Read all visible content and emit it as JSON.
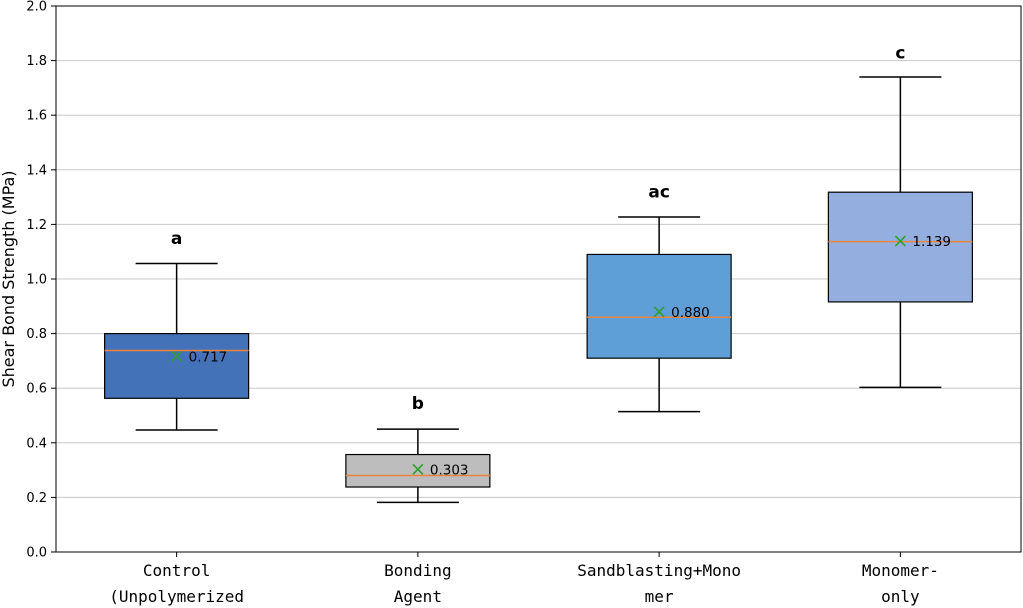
{
  "chart_data": {
    "type": "box",
    "title": "",
    "xlabel": "",
    "ylabel": "Shear Bond Strength (MPa)",
    "ylim": [
      0,
      2.0
    ],
    "yticks": [
      "0.0",
      "0.2",
      "0.4",
      "0.6",
      "0.8",
      "1.0",
      "1.2",
      "1.4",
      "1.6",
      "1.8",
      "2.0"
    ],
    "grid": "horizontal",
    "median_color": "#e8843c",
    "mean_marker_color": "#2ca02c",
    "groups": [
      {
        "label_lines": [
          "Control",
          "(Unpolymerized"
        ],
        "whisker_low": 0.447,
        "q1": 0.563,
        "median": 0.738,
        "q3": 0.8,
        "whisker_high": 1.057,
        "mean": 0.717,
        "mean_label": "0.717",
        "letter": "a",
        "letter_y": 1.15,
        "color": "#4472b8"
      },
      {
        "label_lines": [
          "Bonding",
          "Agent"
        ],
        "whisker_low": 0.182,
        "q1": 0.238,
        "median": 0.28,
        "q3": 0.357,
        "whisker_high": 0.45,
        "mean": 0.303,
        "mean_label": "0.303",
        "letter": "b",
        "letter_y": 0.545,
        "color": "#bdbdbd"
      },
      {
        "label_lines": [
          "Sandblasting+Mono",
          "mer"
        ],
        "whisker_low": 0.514,
        "q1": 0.71,
        "median": 0.86,
        "q3": 1.09,
        "whisker_high": 1.227,
        "mean": 0.88,
        "mean_label": "0.880",
        "letter": "ac",
        "letter_y": 1.32,
        "color": "#5f9fd8"
      },
      {
        "label_lines": [
          "Monomer-",
          "only"
        ],
        "whisker_low": 0.603,
        "q1": 0.916,
        "median": 1.137,
        "q3": 1.318,
        "whisker_high": 1.74,
        "mean": 1.139,
        "mean_label": "1.139",
        "letter": "c",
        "letter_y": 1.83,
        "color": "#94afdf"
      }
    ]
  }
}
